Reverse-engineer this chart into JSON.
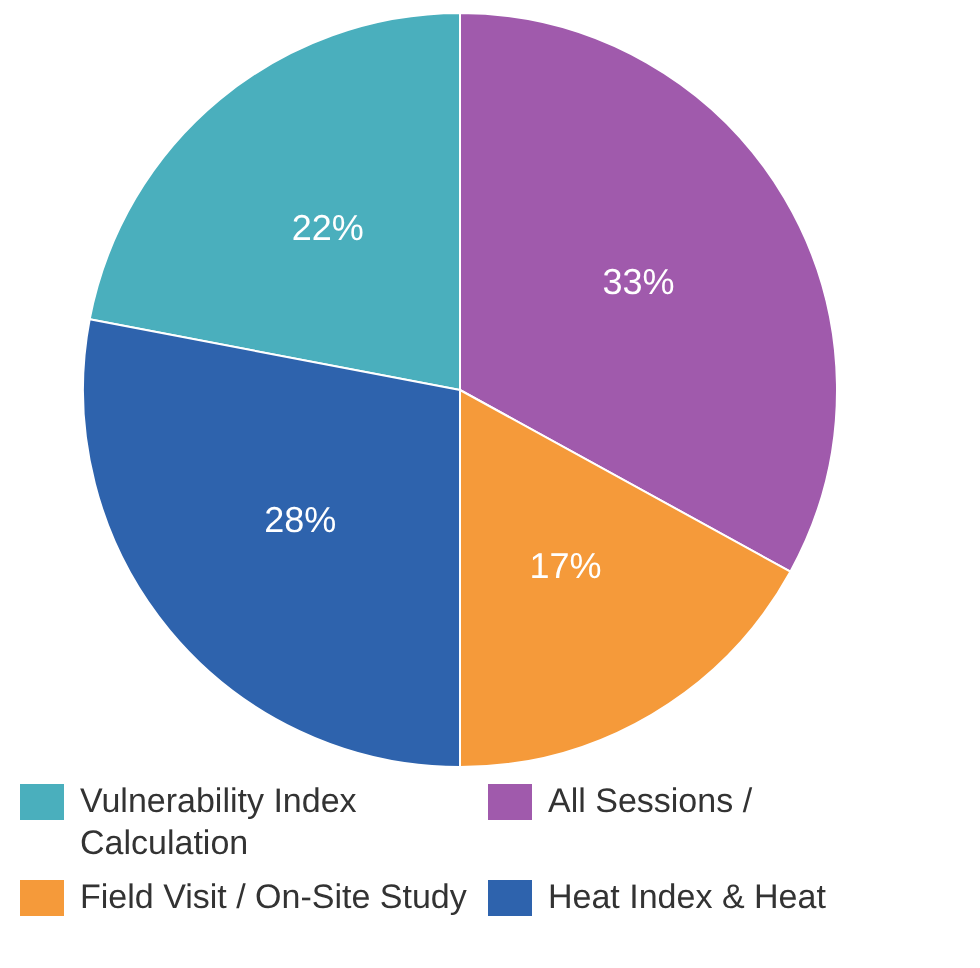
{
  "chart_data": {
    "type": "pie",
    "categories": [
      "Vulnerability Index Calculation",
      "All Sessions /",
      "Field Visit / On-Site Study",
      "Heat Index & Heat"
    ],
    "values": [
      22,
      33,
      17,
      28
    ],
    "colors": [
      "#4aafbd",
      "#a05aac",
      "#f59a3a",
      "#2e63ad"
    ],
    "value_labels": [
      "22%",
      "33%",
      "17%",
      "28%"
    ],
    "legend": "bottom"
  }
}
